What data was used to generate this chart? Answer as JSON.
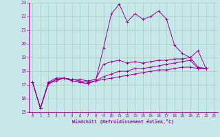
{
  "xlabel": "Windchill (Refroidissement éolien,°C)",
  "bg_color": "#c8e8e8",
  "grid_color": "#a8d0d0",
  "line_color": "#990099",
  "xlim": [
    -0.5,
    23.5
  ],
  "ylim": [
    15,
    23
  ],
  "xticks": [
    0,
    1,
    2,
    3,
    4,
    5,
    6,
    7,
    8,
    9,
    10,
    11,
    12,
    13,
    14,
    15,
    16,
    17,
    18,
    19,
    20,
    21,
    22,
    23
  ],
  "yticks": [
    15,
    16,
    17,
    18,
    19,
    20,
    21,
    22,
    23
  ],
  "series": [
    [
      17.2,
      15.3,
      17.1,
      17.4,
      17.5,
      17.4,
      17.3,
      17.2,
      17.3,
      19.7,
      22.2,
      22.9,
      21.6,
      22.2,
      21.8,
      22.0,
      22.4,
      21.8,
      19.9,
      19.3,
      19.0,
      19.5,
      18.2
    ],
    [
      17.2,
      15.3,
      17.2,
      17.5,
      17.5,
      17.4,
      17.4,
      17.3,
      17.4,
      18.5,
      18.7,
      18.8,
      18.6,
      18.7,
      18.6,
      18.7,
      18.8,
      18.8,
      18.9,
      18.9,
      19.0,
      18.3,
      18.2
    ],
    [
      17.2,
      15.3,
      17.1,
      17.4,
      17.5,
      17.3,
      17.2,
      17.1,
      17.3,
      17.6,
      17.8,
      18.0,
      18.0,
      18.2,
      18.2,
      18.3,
      18.4,
      18.5,
      18.6,
      18.7,
      18.8,
      18.2,
      18.2
    ],
    [
      17.2,
      15.3,
      17.1,
      17.3,
      17.5,
      17.3,
      17.2,
      17.1,
      17.3,
      17.4,
      17.5,
      17.6,
      17.7,
      17.8,
      17.9,
      18.0,
      18.1,
      18.1,
      18.2,
      18.3,
      18.3,
      18.2,
      18.2
    ]
  ]
}
